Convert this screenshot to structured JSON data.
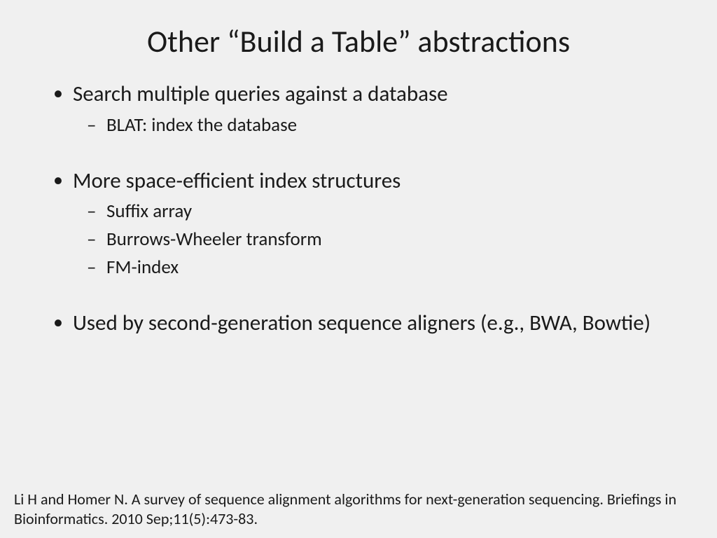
{
  "title": "Other “Build a Table” abstractions",
  "bullets": {
    "b1": "Search multiple queries against a database",
    "b1_sub1": "BLAT: index the database",
    "b2": "More space-efficient index structures",
    "b2_sub1": "Suffix array",
    "b2_sub2": "Burrows-Wheeler transform",
    "b2_sub3": "FM-index",
    "b3": "Used by second-generation sequence aligners (e.g., BWA, Bowtie)"
  },
  "citation": "Li H and Homer N. A survey of sequence alignment algorithms for next-generation sequencing. Briefings in Bioinformatics. 2010 Sep;11(5):473-83.",
  "style": {
    "background_color": "#f0f0f0",
    "text_color": "#1a1a1a",
    "title_fontsize": 44,
    "level1_fontsize": 31,
    "level2_fontsize": 27,
    "citation_fontsize": 22,
    "font_family": "Calibri"
  }
}
